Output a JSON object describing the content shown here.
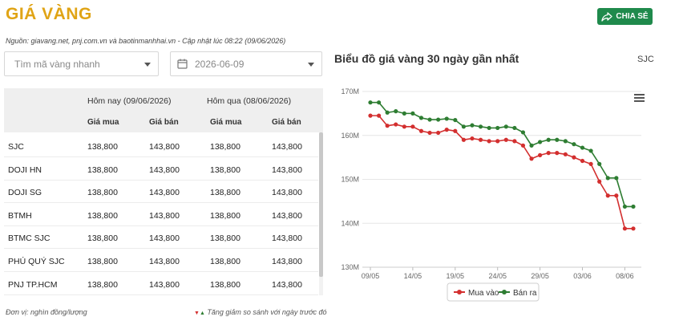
{
  "header": {
    "title": "GIÁ VÀNG",
    "share_label": "CHIA SẺ",
    "source": "Nguồn: giavang.net, pnj.com.vn và baotinmanhhai.vn - Cập nhật lúc 08:22 (09/06/2026)"
  },
  "filters": {
    "search_placeholder": "Tìm mã vàng nhanh",
    "date_value": "2026-06-09"
  },
  "table": {
    "group_today": "Hôm nay (09/06/2026)",
    "group_yesterday": "Hôm qua (08/06/2026)",
    "col_buy": "Giá mua",
    "col_sell": "Giá bán",
    "rows": [
      {
        "name": "SJC",
        "buy_today": "138,800",
        "sell_today": "143,800",
        "buy_yesterday": "138,800",
        "sell_yesterday": "143,800"
      },
      {
        "name": "DOJI HN",
        "buy_today": "138,800",
        "sell_today": "143,800",
        "buy_yesterday": "138,800",
        "sell_yesterday": "143,800"
      },
      {
        "name": "DOJI SG",
        "buy_today": "138,800",
        "sell_today": "143,800",
        "buy_yesterday": "138,800",
        "sell_yesterday": "143,800"
      },
      {
        "name": "BTMH",
        "buy_today": "138,800",
        "sell_today": "143,800",
        "buy_yesterday": "138,800",
        "sell_yesterday": "143,800"
      },
      {
        "name": "BTMC SJC",
        "buy_today": "138,800",
        "sell_today": "143,800",
        "buy_yesterday": "138,800",
        "sell_yesterday": "143,800"
      },
      {
        "name": "PHÚ QUÝ SJC",
        "buy_today": "138,800",
        "sell_today": "143,800",
        "buy_yesterday": "138,800",
        "sell_yesterday": "143,800"
      },
      {
        "name": "PNJ TP.HCM",
        "buy_today": "138,800",
        "sell_today": "143,800",
        "buy_yesterday": "138,800",
        "sell_yesterday": "143,800"
      }
    ]
  },
  "footer": {
    "unit": "Đơn vị: nghìn đồng/lượng",
    "change_note": "Tăng giảm so sánh với ngày trước đó"
  },
  "colors": {
    "gold": "#e0a416",
    "buy": "#d32f2f",
    "sell": "#2e7d32",
    "share_bg": "#1f8a4c"
  },
  "icons": {
    "share": "share-arrow-icon",
    "calendar": "calendar-icon",
    "menu": "hamburger-menu-icon"
  },
  "chart_data": {
    "type": "line",
    "title": "Biểu đồ giá vàng 30 ngày gần nhất",
    "code": "SJC",
    "y_ticks": [
      "130M",
      "140M",
      "150M",
      "160M",
      "170M"
    ],
    "ylim": [
      130,
      170
    ],
    "x_ticks": [
      "09/05",
      "14/05",
      "19/05",
      "24/05",
      "29/05",
      "03/06",
      "08/06"
    ],
    "x_tick_index": [
      0,
      5,
      10,
      15,
      20,
      25,
      30
    ],
    "legend": "bottom",
    "series": [
      {
        "name": "Mua vào",
        "color": "#d32f2f",
        "values": [
          164.5,
          164.5,
          162.2,
          162.5,
          162.0,
          162.0,
          161.0,
          160.6,
          160.6,
          161.3,
          161.0,
          159.0,
          159.3,
          159.0,
          158.7,
          158.7,
          159.0,
          158.7,
          157.7,
          154.7,
          155.5,
          156.0,
          156.0,
          155.7,
          155.0,
          154.2,
          153.5,
          149.5,
          146.3,
          146.3,
          138.8,
          138.8
        ]
      },
      {
        "name": "Bán ra",
        "color": "#2e7d32",
        "values": [
          167.5,
          167.5,
          165.2,
          165.5,
          165.0,
          165.0,
          164.0,
          163.6,
          163.6,
          163.8,
          163.5,
          162.0,
          162.3,
          162.0,
          161.7,
          161.7,
          162.0,
          161.7,
          160.7,
          157.7,
          158.5,
          159.0,
          159.0,
          158.7,
          158.0,
          157.2,
          156.5,
          153.5,
          150.3,
          150.3,
          143.8,
          143.8
        ]
      }
    ]
  }
}
